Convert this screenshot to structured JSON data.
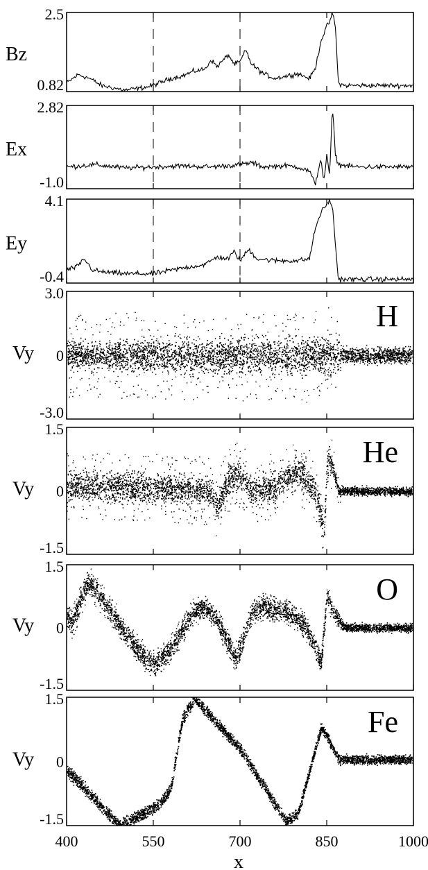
{
  "chart_data": [
    {
      "type": "line",
      "panel": "Bz",
      "ylabel": "Bz",
      "ylim": [
        0.82,
        2.5
      ],
      "ytick_labels": [
        "2.5",
        "0.82"
      ],
      "xlim": [
        400,
        1000
      ],
      "x": [
        400,
        420,
        440,
        460,
        480,
        500,
        520,
        540,
        560,
        580,
        600,
        620,
        640,
        650,
        660,
        680,
        690,
        700,
        710,
        720,
        740,
        760,
        780,
        800,
        820,
        830,
        840,
        850,
        855,
        860,
        865,
        870,
        880,
        900,
        950,
        1000
      ],
      "y": [
        1.0,
        1.18,
        1.1,
        0.95,
        0.9,
        0.85,
        0.88,
        0.92,
        1.0,
        1.1,
        1.15,
        1.25,
        1.3,
        1.5,
        1.35,
        1.6,
        1.4,
        1.45,
        1.7,
        1.4,
        1.2,
        1.1,
        1.15,
        1.2,
        1.1,
        1.3,
        1.9,
        2.2,
        2.3,
        2.5,
        2.2,
        1.0,
        0.95,
        0.95,
        0.95,
        0.95
      ]
    },
    {
      "type": "line",
      "panel": "Ex",
      "ylabel": "Ex",
      "ylim": [
        -1.0,
        2.82
      ],
      "ytick_labels": [
        "2.82",
        "-1.0"
      ],
      "xlim": [
        400,
        1000
      ],
      "x": [
        400,
        450,
        500,
        550,
        600,
        650,
        700,
        720,
        740,
        780,
        800,
        820,
        830,
        840,
        845,
        850,
        855,
        860,
        865,
        870,
        900,
        950,
        1000
      ],
      "y": [
        0.0,
        0.1,
        -0.05,
        0.0,
        0.05,
        0.0,
        0.1,
        0.2,
        0.0,
        0.05,
        0.0,
        -0.2,
        -0.8,
        0.4,
        -0.7,
        0.5,
        -0.4,
        2.8,
        0.6,
        0.1,
        0.0,
        0.0,
        0.0
      ]
    },
    {
      "type": "line",
      "panel": "Ey",
      "ylabel": "Ey",
      "ylim": [
        -0.4,
        4.1
      ],
      "ytick_labels": [
        "4.1",
        "-0.4"
      ],
      "xlim": [
        400,
        1000
      ],
      "x": [
        400,
        420,
        430,
        445,
        460,
        500,
        550,
        600,
        640,
        660,
        680,
        690,
        700,
        715,
        730,
        760,
        800,
        820,
        830,
        840,
        850,
        855,
        860,
        870,
        900,
        950,
        1000
      ],
      "y": [
        0.3,
        0.5,
        0.9,
        0.3,
        0.2,
        0.1,
        0.1,
        0.4,
        0.6,
        1.0,
        0.9,
        1.3,
        0.8,
        1.4,
        0.9,
        0.8,
        0.8,
        0.9,
        2.5,
        3.4,
        3.8,
        4.1,
        3.6,
        -0.2,
        -0.2,
        -0.2,
        -0.2
      ]
    },
    {
      "type": "scatter",
      "panel": "H",
      "species": "H",
      "ylabel": "Vy",
      "ylim": [
        -3.0,
        3.0
      ],
      "ytick_labels": [
        "3.0",
        "0",
        "-3.0"
      ],
      "xlim": [
        400,
        1000
      ],
      "center": [
        [
          400,
          0
        ],
        [
          600,
          0
        ],
        [
          800,
          0
        ],
        [
          860,
          0
        ],
        [
          1000,
          0
        ]
      ],
      "spread": [
        [
          400,
          0.5
        ],
        [
          840,
          0.7
        ],
        [
          860,
          0.8
        ],
        [
          880,
          0.3
        ],
        [
          1000,
          0.3
        ]
      ],
      "outlier_spread": [
        [
          400,
          2.0
        ],
        [
          850,
          2.2
        ],
        [
          860,
          2.8
        ],
        [
          880,
          0.4
        ],
        [
          1000,
          0.3
        ]
      ]
    },
    {
      "type": "scatter",
      "panel": "He",
      "species": "He",
      "ylabel": "Vy",
      "ylim": [
        -1.5,
        1.5
      ],
      "ytick_labels": [
        "1.5",
        "0",
        "-1.5"
      ],
      "xlim": [
        400,
        1000
      ],
      "center": [
        [
          400,
          0.1
        ],
        [
          500,
          0.1
        ],
        [
          600,
          0.05
        ],
        [
          650,
          0.0
        ],
        [
          660,
          -0.4
        ],
        [
          680,
          0.3
        ],
        [
          700,
          0.4
        ],
        [
          720,
          0.0
        ],
        [
          760,
          0.1
        ],
        [
          800,
          0.5
        ],
        [
          830,
          0.0
        ],
        [
          845,
          -0.9
        ],
        [
          850,
          0.5
        ],
        [
          855,
          0.8
        ],
        [
          870,
          0.0
        ],
        [
          1000,
          0.0
        ]
      ],
      "spread": [
        [
          400,
          0.3
        ],
        [
          800,
          0.25
        ],
        [
          850,
          0.3
        ],
        [
          870,
          0.08
        ],
        [
          1000,
          0.08
        ]
      ],
      "outlier_spread": [
        [
          400,
          0.8
        ],
        [
          840,
          0.8
        ],
        [
          860,
          0.6
        ],
        [
          880,
          0.1
        ],
        [
          1000,
          0.1
        ]
      ]
    },
    {
      "type": "scatter",
      "panel": "O",
      "species": "O",
      "ylabel": "Vy",
      "ylim": [
        -1.5,
        1.5
      ],
      "ytick_labels": [
        "1.5",
        "0",
        "-1.5"
      ],
      "xlim": [
        400,
        1000
      ],
      "center": [
        [
          400,
          0.3
        ],
        [
          410,
          0.1
        ],
        [
          430,
          0.9
        ],
        [
          440,
          1.1
        ],
        [
          480,
          0.3
        ],
        [
          520,
          -0.5
        ],
        [
          550,
          -0.9
        ],
        [
          580,
          -0.5
        ],
        [
          620,
          0.4
        ],
        [
          640,
          0.5
        ],
        [
          660,
          0.2
        ],
        [
          690,
          -0.7
        ],
        [
          700,
          -0.5
        ],
        [
          720,
          0.4
        ],
        [
          740,
          0.5
        ],
        [
          780,
          0.4
        ],
        [
          810,
          0.1
        ],
        [
          840,
          -0.8
        ],
        [
          850,
          0.8
        ],
        [
          860,
          0.4
        ],
        [
          880,
          0.0
        ],
        [
          1000,
          0.0
        ]
      ],
      "spread": [
        [
          400,
          0.2
        ],
        [
          840,
          0.2
        ],
        [
          860,
          0.15
        ],
        [
          880,
          0.08
        ],
        [
          1000,
          0.08
        ]
      ],
      "outlier_spread": [
        [
          400,
          0.4
        ],
        [
          860,
          0.3
        ],
        [
          880,
          0.1
        ],
        [
          1000,
          0.1
        ]
      ]
    },
    {
      "type": "scatter",
      "panel": "Fe",
      "species": "Fe",
      "ylabel": "Vy",
      "ylim": [
        -1.5,
        1.5
      ],
      "ytick_labels": [
        "1.5",
        "0",
        "-1.5"
      ],
      "xlim": [
        400,
        1000
      ],
      "center": [
        [
          400,
          -0.2
        ],
        [
          450,
          -0.9
        ],
        [
          490,
          -1.5
        ],
        [
          520,
          -1.3
        ],
        [
          560,
          -1.0
        ],
        [
          580,
          -0.6
        ],
        [
          600,
          1.0
        ],
        [
          620,
          1.5
        ],
        [
          700,
          0.3
        ],
        [
          780,
          -1.4
        ],
        [
          800,
          -1.2
        ],
        [
          840,
          0.8
        ],
        [
          850,
          0.6
        ],
        [
          870,
          0.05
        ],
        [
          1000,
          0.05
        ]
      ],
      "spread": [
        [
          400,
          0.12
        ],
        [
          1000,
          0.08
        ]
      ],
      "outlier_spread": [
        [
          400,
          0.15
        ],
        [
          1000,
          0.1
        ]
      ]
    }
  ],
  "x_axis": {
    "xlabel": "x",
    "ticks": [
      400,
      550,
      700,
      850,
      1000
    ],
    "tick_labels": [
      "400",
      "550",
      "700",
      "850",
      "1000"
    ]
  }
}
